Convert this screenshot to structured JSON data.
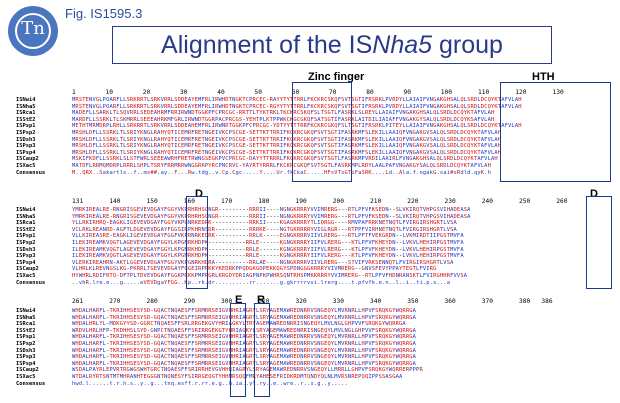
{
  "logo_text": "Tn",
  "fig_label": "Fig. IS1595.3",
  "title_prefix": "Alignment of the IS",
  "title_italic": "Nha5",
  "title_suffix": " group",
  "annotations": {
    "zinc_finger": "Zinc finger",
    "hth": "HTH",
    "d1": "D",
    "d2": "D",
    "e": "E",
    "r": "R"
  },
  "names": [
    "ISNwi4",
    "ISNha5",
    "ISRca1",
    "ISStE2",
    "ISPsp1",
    "ISPsp2",
    "ISDsh3",
    "ISPsp3",
    "ISPsp4",
    "ISCaup2",
    "ISXac5",
    "Consensus"
  ],
  "ruler1": "1        10        20        30        40        50        60        70        80        90        100       110       120       130",
  "ruler2": "131       140       150       160       170       180       190       200       210       220       230       240       250       260",
  "ruler3": "261       270       280       290       300       310       320       330       340       350       360       370       380   386",
  "block1": [
    "MRSTENVGLPOARFLLSRKRRTLSRKVRRLSDDEAYEMFRLIRWHDTNGKTCPRCEC-RAYYTYTTRRLFKCKRCSKQFSVTSGTIFRSRKLPVRDYLLAIAIFVNGAKGHSALQLSRDLDCQYKTAFVLAH",
    "MRSTENVGLPOARFLLSRKRRTLSRKVRRLSDDEAYEMFRLIRWHDTNGKTCPRCEC-RGYYTYTTRRLFKCKRCSKQFSVTSGTIFRSRKLPVRDYLLAIAIFVNGAKGHSALQLSRDLDCQYKTAFVLAH",
    "MADEFLLSARKLTLSQVRRLSEDEAHRMFRRIRWNDTGGKPFCPRCGC-RRTTLTYKTRKLTKCKRCSKQFSLTSGTLFASRKLSLREYLLAIAIFVNGAKGHSALQLSRDLDCQYKTAFVLAH",
    "MARDFLLSSRKLTLSKMRRLSEEEAHRKMFGRLIRWNDTGGRPACPRCGS-YEHTPLKTPPWKCKGCGKQFSATSGTIFASRKLAITDILIAIAFFVNGAKGYSALQLSRDLDCQYKSAFVLAH",
    "METHTMRMDRPLRHLLSRKRRTLSRKVRRLSDDEAHEMFRLIRWNDTGGKPFCPRCGC-YDTYYTTTRRFKCKRCGKQFSLTSGTIFRSRKLPITEYLLAIAIFVNGAKGHSALQLSRDLDCQYKTAFVLAH",
    "MRSHLDFLLSSRKLTLSRIYKNGLRAHYQTICEMRFRETNGEIVKCPSCGE-SETTKTTRRIFKCKRCGKQFSVTSGTIFASRKMFSLEKILLAAIQFVNGAKGVSALQLSRDLDCQYKTAFVLAH",
    "MRSHLDFLLSSRKLTLSRIYKNGLRAHYQTICEMRFRETNGEIVKCPSCGE-SETTKTTRRIFKCKRCGKQFSVTSGTIFASRKMFSLEKILLAAIQFVNGAKGVSALQLSRDLDCQYKTAFVLAH",
    "MRSHLDFLLSSRKLTLSRIYKNGLRAHYQTICEMRFRETNGEIVKCPSCGE-SETTKTTRRIFKCKRCGKQFSVTSGTIFASRKMFSLEKILLAAIQFVNGAKGVSALQLSRDLDCQYKTAFVLAH",
    "MRSHLDFLLSSRKLTLSRIYKNGLRAHYQTICEMRFRETNGEIVKCPSCGE-SETTKTTRRIFKCKRCGKQFSVTSGTIFASRKMFSLEKILLAAIQFVNGAKGVSALQLSRDLDCQYKTAFVLAH",
    "MSKIFKDFLLSSRKLSLSTFWRLSEEEAWRHFRETRWNGSEGKPVCPRCGC-DAYYTTRRRLFKCKRCGKQFSVTSGTLFASRKMPVRDILAAIRLFVNGAKGHSALQLSRDLDCQYKTAFVLAH",
    "MATDFLRRMQMDRPLRRRLSHPLTSRYFRRMRRWNGGRKPYRCPNCRVC-YAYRTYRRRLFKCKRCGKQFSVTSGTLFASRKMPLRDYLAALPAFVNGAKGYSALQLSRDLDCQYKTAFVLAH",
    "M..QRX..Sakartls..f..ms##.ay..F...Rw.tdg..v.Cp.Cgc.....Y....Ur.fkCkaC.....HFsVTsGTiFaSRK....Ld..Ala.f.ngakG.sai#sRdld.qyK.h"
  ],
  "block2": [
    "YMRKIREALRE-RNGRISGEVEVDGAYFGGYVKPRHRHSGNGR---------RRRII----NGNGKRRRYVVIMRERG---RTLPFVFKSEDN--SLVKIRQTVHPGSVIHADEASA",
    "YMRKIREALRE-RNGRISGEVEVDGAYFGGYVKPRHRHSGNGR---------RRRII----NGNGKRRRYVVIMRERG---RTLPFVFKSEDN--SLVKIRQTVHPGSVIHADEASA",
    "YLLRKIRHRQ-EAGKLIGEVEVDGAYFGGYVKPGNRKEDRK-----------RRKII----KGAGKRRRYTLIQRGG----RMVPAFRRKNETNQTLFVIRGIRSHGRTLVSA",
    "VCLRKLREANRD-AGFTLDGEVEVDGAYFGGSIRPKHRNSDR----------RRRKE----NGTGKRRRRYVIGLRGR---RTPPFVIRHNETNQTLFVIRGIRSHGRTLVSA",
    "VLLKIREASRE-EAGKLIGEVEVDGAYFGGFVKPRNRKEDRK----------RRLK-----EGNGKRRRVIIVLRERG---RTLPFTFVEKGRDN--LVKMIRDTIIPGSTMVFA",
    "ILEKIREAMKVQGTLAGEVEVDGAYFGGYLKPGNRKHDPK-----------RRLE------KGNGKRRRYIIFVLRERG---KTLPFVFKHEYDN--LVKVLHEHIRPGSTMVFA",
    "ILEKIREAMKVQGTLAGEVEVDGAYFGGYLKPGNRKHDPK-----------RRLE------KGNGKRRRYIIFVLRERG---KTLPFVFKHEYDN--LVKVLHEHIRPGSTMVFA",
    "ILEKIREAMKVQGTLAGEVEVDGAYFGGYLKPGNRKHDPK-----------RRLE------KGNGKRRRYIIFVLRERG---KTLPFVFKHEYDN--LVKVLHEHIRPGSTMVFA",
    "VLERKIREAHRN-AKTLGGEVEVDGAYFGGYVKPGNRKHDRA----------RRLAE----NGNGKRRRVIIVLRERG---STVIFVRKSENNQTLFVIRGIRSHGRTLVSA",
    "VLHRLKLREVNGSLKG-PKRRLTGEVEVDGAYFGGEIRPRKKYKEDRKPPQDGKGDPEKKQGYSPDNGGGKRRRYVIVMRERG--GNVSFEVYPPAYTEGTLFVIRG",
    "HYWHRLRDIFRTQ-DFTPLTDVEVDGAYFGGKPRKKPMPRGRLKRGDYDRIAGPNPKPWHRSQNTRHSPMKKRRRYVVIMRERG--RTLPFVFHDNRANSKTLFVIRGHHRFVVSA",
    "..vhR.lre.e...g.....eVEVDgaYFGG..Kp..rk.dr..........rr.......g.gkrrrrvvi.lrerg....t.pfvfk.e.n..l..i..ti.p.s...a"
  ],
  "block3": [
    "WHDALHARFL-TKRIHHSESYSD-GQACTNQAESFFSRMRRSEIGVHHRIAGRYLSRYAGEMAWREDNRRVSNGEQYLMVRNRLLHPVFSRQKGYWQRRGA",
    "WHDALHARFL-TKRIHHSESYSD-GQACTNQAESFFSRMRRSEIGVHHRIAGRYLSRYAGEMAWREDNRRVSNGEQYLMVRNRLLHPVFSRQKGYWQRRGA",
    "WHDALHRLYL-MDKGYYSD-GGRCTNQAESFFSRLRRGEKGVYHRIAGKYLTRYAGEMAWREDNRRISNGEQYLMVLNGLGHPVVFSRQKGYWQRRGA",
    "WRDVLHRLHFP-TKDHHSLSYD-GNPCTNQAESFFSRIRRGEKGTYHRIAGKYLSRYAGEMAWREDNRRISNGEQYLMVLNGLGHPVVFSRQKGYWQRRGA",
    "WHDALHARFL-TKRIHHSESYSD-GQACTNQAESFFSRMRRSEIGVHHRIAGRYLSRYAGEMAWREDNRRVSNGEQYLMVRNRLLHPVFSRQKGYWQRRGA",
    "WHDALHARFL-TKRIHHSESYSD-GQACTNQAESFFSRMRRSEIGVHHRIAGRYLSRYAGEMAWREDNRRVSNGEQYLMVRNRLLHPVFSRQKGYWQRRGA",
    "WHDALHARFL-TKRIHHSESYSD-GQACTNQAESFFSRMRRSEIGVHHRIAGRYLSRYAGEMAWREDNRRVSNGEQYLMVRNRLLHPVFSRQKGYWQRRGA",
    "WHDALHARFL-TKRIHHSESYSD-GQACTNQAESFFSRMRRSEIGVHHRIAGRYLSRYAGEMAWREDNRRVSNGEQYLMVRNRLLHPVFSRQKGYWQRRGA",
    "WHDALHARFL-TKRIHHSESYSD-GQACTNQAESFFSRMRRSEIGVHHRIAGRYLSRYAGEMAWREDNRRVSNGEQYLMVRNRLLHPVFSRQKGYWQRRGA",
    "WSDALPAYRLEPVRTRGWGSWHTGRCTNQAESFFSRIRRHEVGVHHRIAGRYLSRYAGEMAWREDNRRVSNGEQYLLMRRLLGHPVFSRQKGYWQRRERPPPR",
    "WTDALRYRTSNTMTMHRANHTEGGGNTNQNESYFSIRRGEQGTYHHMRSQQFMRYAHESEFRIDKRDMTQNDYQLNLMVRSNREPQQIPPSSASGAA",
    "hwd.l......t.r.h.s..y..g...tnq.esff.r.rr.e.g..h.ia..yl.ry..e..wre..r..s.g..y....."
  ]
}
